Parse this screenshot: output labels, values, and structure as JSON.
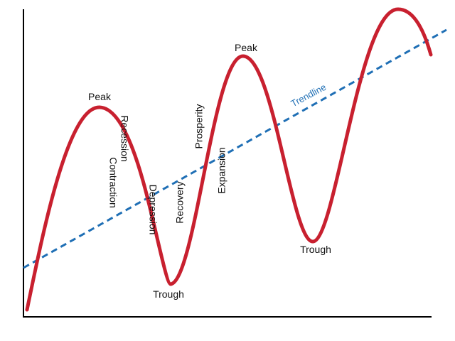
{
  "colors": {
    "cycle_curve": "#C8202F",
    "trendline": "#1F6FB5",
    "axes": "#000000",
    "text": "#111111"
  },
  "labels": {
    "peak_1": "Peak",
    "peak_2": "Peak",
    "trough_1": "Trough",
    "trough_2": "Trough",
    "recession": "Recession",
    "contraction": "Contraction",
    "depression": "Depression",
    "recovery": "Recovery",
    "prosperity": "Prosperity",
    "expansion": "Expansion",
    "trendline": "Trendline"
  }
}
